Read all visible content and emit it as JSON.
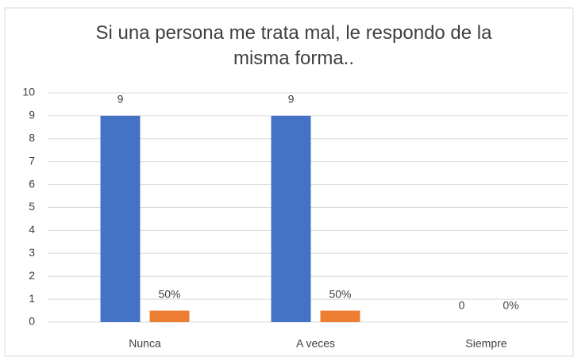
{
  "chart_data": {
    "type": "bar",
    "title": "Si una persona me trata mal, le respondo de la misma forma..",
    "categories": [
      "Nunca",
      "A veces",
      "Siempre"
    ],
    "series": [
      {
        "color": "#4472c4",
        "values": [
          9,
          9,
          0
        ],
        "value_labels": [
          "9",
          "9",
          "0"
        ]
      },
      {
        "color": "#ed7d31",
        "values": [
          0.5,
          0.5,
          0
        ],
        "value_labels": [
          "50%",
          "50%",
          "0%"
        ]
      }
    ],
    "ylim": [
      0,
      10
    ],
    "yticks": [
      0,
      1,
      2,
      3,
      4,
      5,
      6,
      7,
      8,
      9,
      10
    ],
    "grid": true
  }
}
